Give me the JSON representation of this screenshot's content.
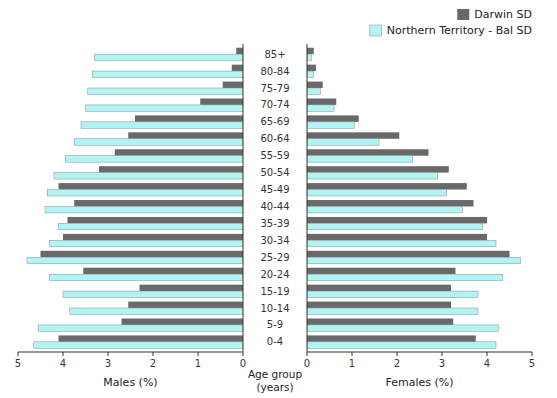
{
  "chart_data": [
    {
      "type": "bar",
      "orientation": "horizontal",
      "categories": [
        "0-4",
        "5-9",
        "10-14",
        "15-19",
        "20-24",
        "25-29",
        "30-34",
        "35-39",
        "40-44",
        "45-49",
        "50-54",
        "55-59",
        "60-64",
        "65-69",
        "70-74",
        "75-79",
        "80-84",
        "85+"
      ],
      "x_label": "Males (%)",
      "y_label": "Age group\n(years)",
      "xlim": [
        5.0,
        0
      ],
      "xticks": [
        0,
        1,
        2,
        3,
        4,
        5
      ],
      "series": [
        {
          "color": "#696969",
          "values": [
            4.1,
            2.7,
            2.55,
            2.3,
            3.55,
            4.5,
            4.0,
            3.9,
            3.75,
            4.1,
            3.2,
            2.85,
            2.55,
            2.4,
            0.95,
            0.45,
            0.25,
            0.15
          ]
        },
        {
          "color": "#b0f4f4",
          "values": [
            4.65,
            4.55,
            3.85,
            4.0,
            4.3,
            4.8,
            4.3,
            4.1,
            4.4,
            4.35,
            4.2,
            3.95,
            3.75,
            3.6,
            3.5,
            3.45,
            3.35,
            3.3
          ]
        }
      ]
    },
    {
      "type": "bar",
      "orientation": "horizontal",
      "x_label": "Females (%)",
      "xlim": [
        0,
        5.0
      ],
      "xticks": [
        0,
        1,
        2,
        3,
        4,
        5
      ],
      "tick_labels": "x",
      "legend": "upper right",
      "series": [
        {
          "name": "Darwin SD",
          "color": "#696969",
          "values": [
            3.75,
            3.25,
            3.2,
            3.2,
            3.3,
            4.5,
            4.0,
            4.0,
            3.7,
            3.55,
            3.15,
            2.7,
            2.05,
            1.15,
            0.65,
            0.35,
            0.2,
            0.15
          ]
        },
        {
          "name": "Northern Territory - Bal SD",
          "color": "#b0f4f4",
          "values": [
            4.2,
            4.25,
            3.8,
            3.8,
            4.35,
            4.75,
            4.2,
            3.9,
            3.45,
            3.1,
            2.9,
            2.35,
            1.6,
            1.05,
            0.6,
            0.3,
            0.15,
            0.1
          ]
        }
      ]
    }
  ]
}
